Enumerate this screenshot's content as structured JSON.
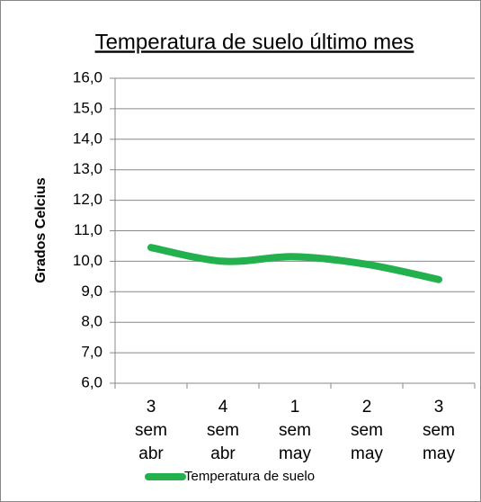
{
  "chart_data": {
    "type": "line",
    "title": "Temperatura de suelo último mes",
    "y_label": "Grados Celcius",
    "categories": [
      "3 sem abr",
      "4 sem abr",
      "1 sem may",
      "2 sem may",
      "3 sem may"
    ],
    "series": [
      {
        "name": "Temperatura de suelo",
        "color": "#22b14c",
        "values": [
          10.45,
          10.0,
          10.15,
          9.9,
          9.4
        ]
      }
    ],
    "ylim": [
      6,
      16
    ],
    "yticks": [
      {
        "value": 6,
        "label": "6,0"
      },
      {
        "value": 7,
        "label": "7,0"
      },
      {
        "value": 8,
        "label": "8,0"
      },
      {
        "value": 9,
        "label": "9,0"
      },
      {
        "value": 10,
        "label": "10,0"
      },
      {
        "value": 11,
        "label": "11,0"
      },
      {
        "value": 12,
        "label": "12,0"
      },
      {
        "value": 13,
        "label": "13,0"
      },
      {
        "value": 14,
        "label": "14,0"
      },
      {
        "value": 15,
        "label": "15,0"
      },
      {
        "value": 16,
        "label": "16,0"
      }
    ],
    "grid": true,
    "smooth": true,
    "legend": "bottom"
  }
}
